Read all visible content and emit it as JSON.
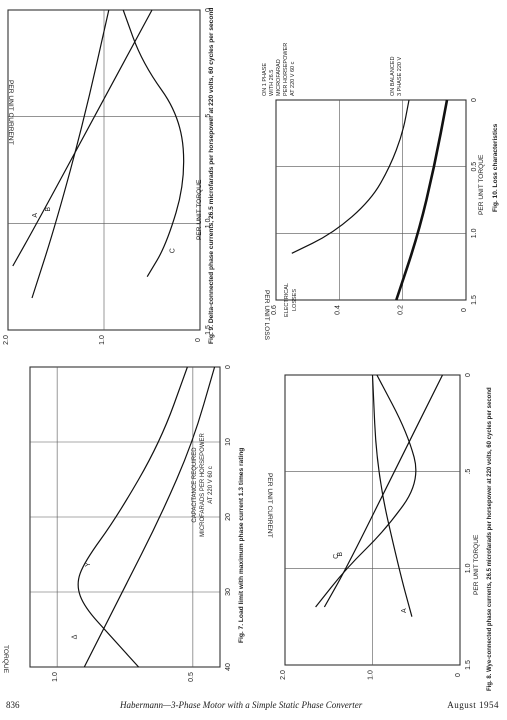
{
  "page": {
    "page_number": "836",
    "running_title": "Habermann—3-Phase Motor with a Simple Static Phase Converter",
    "date": "August 1954"
  },
  "figures": {
    "fig7": {
      "caption": "Fig. 7.   Load limit with maximum phase current 1.3 times rating",
      "xlabel_lines": [
        "CAPACITANCE   REQUIRED",
        "MICROFARADS  PER  HORSEPOWER",
        "AT 220 V   60 c"
      ],
      "ylabel": "TORQUE",
      "xticks": [
        "0",
        "10",
        "20",
        "30",
        "40"
      ],
      "yticks": [
        "0.5",
        "1.0"
      ],
      "curve_labels": [
        "Y",
        "Δ"
      ]
    },
    "fig8": {
      "caption": "Fig. 8.   Wye-connected phase currents, 26.5 microfarads per horsepower at 220 volts, 60 cycles per second",
      "xlabel": "PER UNIT  TORQUE",
      "ylabel": "PER UNIT CURRENT",
      "xticks": [
        "0",
        ".5",
        "1.0",
        "1.5"
      ],
      "yticks": [
        "0",
        "1.0",
        "2.0"
      ],
      "curve_labels": [
        "A",
        "B",
        "C"
      ]
    },
    "fig9": {
      "caption": "Fig. 9.   Delta-connected phase currents, 26.5 microfarads per horsepower at 220 volts, 60 cycles per second",
      "xlabel": "PER UNIT  TORQUE",
      "ylabel": "PER UNIT CURRENT",
      "xticks": [
        "0",
        ".5",
        "1.0",
        "1.5"
      ],
      "yticks": [
        "0",
        "1.0",
        "2.0"
      ],
      "curve_labels": [
        "A",
        "B",
        "C"
      ]
    },
    "fig10": {
      "caption": "Fig. 10.   Loss characteristics",
      "xlabel": "PER UNIT  TORQUE",
      "ylabel": "PER UNIT LOSS",
      "xticks": [
        "0",
        "0.5",
        "1.0",
        "1.5"
      ],
      "yticks": [
        "0",
        "0.2",
        "0.4",
        "0.6"
      ],
      "axis_title_lines": [
        "ELECTRICAL",
        "LOSSES"
      ],
      "annotation_single": [
        "ON 1 PHASE",
        "WITH 26.5",
        "MICROFARAD",
        "PER HORSEPOWER",
        "AT 220 V  60 c"
      ],
      "annotation_balanced": [
        "ON BALANCED",
        "3 PHASE   220 V"
      ]
    }
  },
  "chart_data": [
    {
      "id": "fig7",
      "type": "line",
      "title": "Load limit with maximum phase current 1.3 times rating",
      "xlabel": "CAPACITANCE REQUIRED MICROFARADS PER HORSEPOWER AT 220 V 60 c",
      "ylabel": "TORQUE",
      "xlim": [
        0,
        40
      ],
      "ylim": [
        0.4,
        1.1
      ],
      "grid": true,
      "series": [
        {
          "name": "Y",
          "x": [
            0,
            10,
            20,
            26,
            29,
            32,
            36,
            40
          ],
          "y": [
            0.52,
            0.62,
            0.78,
            0.9,
            0.93,
            0.9,
            0.8,
            0.7
          ]
        },
        {
          "name": "Δ",
          "x": [
            0,
            10,
            20,
            30,
            40
          ],
          "y": [
            0.42,
            0.5,
            0.62,
            0.76,
            0.9
          ]
        }
      ]
    },
    {
      "id": "fig8",
      "type": "line",
      "title": "Wye-connected phase currents, 26.5 microfarads per horsepower at 220 volts, 60 cycles per second",
      "xlabel": "PER UNIT TORQUE",
      "ylabel": "PER UNIT CURRENT",
      "xlim": [
        0,
        1.5
      ],
      "ylim": [
        0,
        2.0
      ],
      "grid": true,
      "series": [
        {
          "name": "A",
          "x": [
            0,
            0.5,
            1.0,
            1.25
          ],
          "y": [
            1.0,
            0.95,
            0.7,
            0.55
          ]
        },
        {
          "name": "B",
          "x": [
            0,
            0.5,
            1.0,
            1.2
          ],
          "y": [
            0.2,
            0.75,
            1.3,
            1.55
          ]
        },
        {
          "name": "C",
          "x": [
            0,
            0.3,
            0.55,
            0.8,
            1.0,
            1.2
          ],
          "y": [
            0.95,
            0.6,
            0.45,
            0.85,
            1.3,
            1.65
          ]
        }
      ]
    },
    {
      "id": "fig9",
      "type": "line",
      "title": "Delta-connected phase currents, 26.5 microfarads per horsepower at 220 volts, 60 cycles per second",
      "xlabel": "PER UNIT TORQUE",
      "ylabel": "PER UNIT CURRENT",
      "xlim": [
        0,
        1.5
      ],
      "ylim": [
        0,
        2.0
      ],
      "grid": true,
      "series": [
        {
          "name": "A",
          "x": [
            0,
            0.5,
            1.0,
            1.2
          ],
          "y": [
            0.5,
            1.1,
            1.7,
            1.95
          ]
        },
        {
          "name": "B",
          "x": [
            0,
            0.5,
            1.0,
            1.35
          ],
          "y": [
            0.95,
            1.2,
            1.5,
            1.75
          ]
        },
        {
          "name": "C",
          "x": [
            0,
            0.25,
            0.5,
            0.8,
            1.1,
            1.25
          ],
          "y": [
            0.8,
            0.6,
            0.2,
            0.15,
            0.35,
            0.55
          ]
        }
      ]
    },
    {
      "id": "fig10",
      "type": "line",
      "title": "Loss characteristics",
      "xlabel": "PER UNIT TORQUE",
      "ylabel": "PER UNIT LOSS",
      "xlim": [
        0,
        1.5
      ],
      "ylim": [
        0,
        0.6
      ],
      "grid": true,
      "series": [
        {
          "name": "ON 1 PHASE WITH 26.5 MICROFARAD PER HORSEPOWER AT 220 V 60 c",
          "x": [
            0,
            0.25,
            0.5,
            0.75,
            1.0,
            1.15
          ],
          "y": [
            0.18,
            0.2,
            0.24,
            0.3,
            0.42,
            0.55
          ]
        },
        {
          "name": "ON BALANCED 3 PHASE 220 V",
          "x": [
            0,
            0.5,
            1.0,
            1.5
          ],
          "y": [
            0.06,
            0.1,
            0.15,
            0.22
          ]
        }
      ]
    }
  ]
}
